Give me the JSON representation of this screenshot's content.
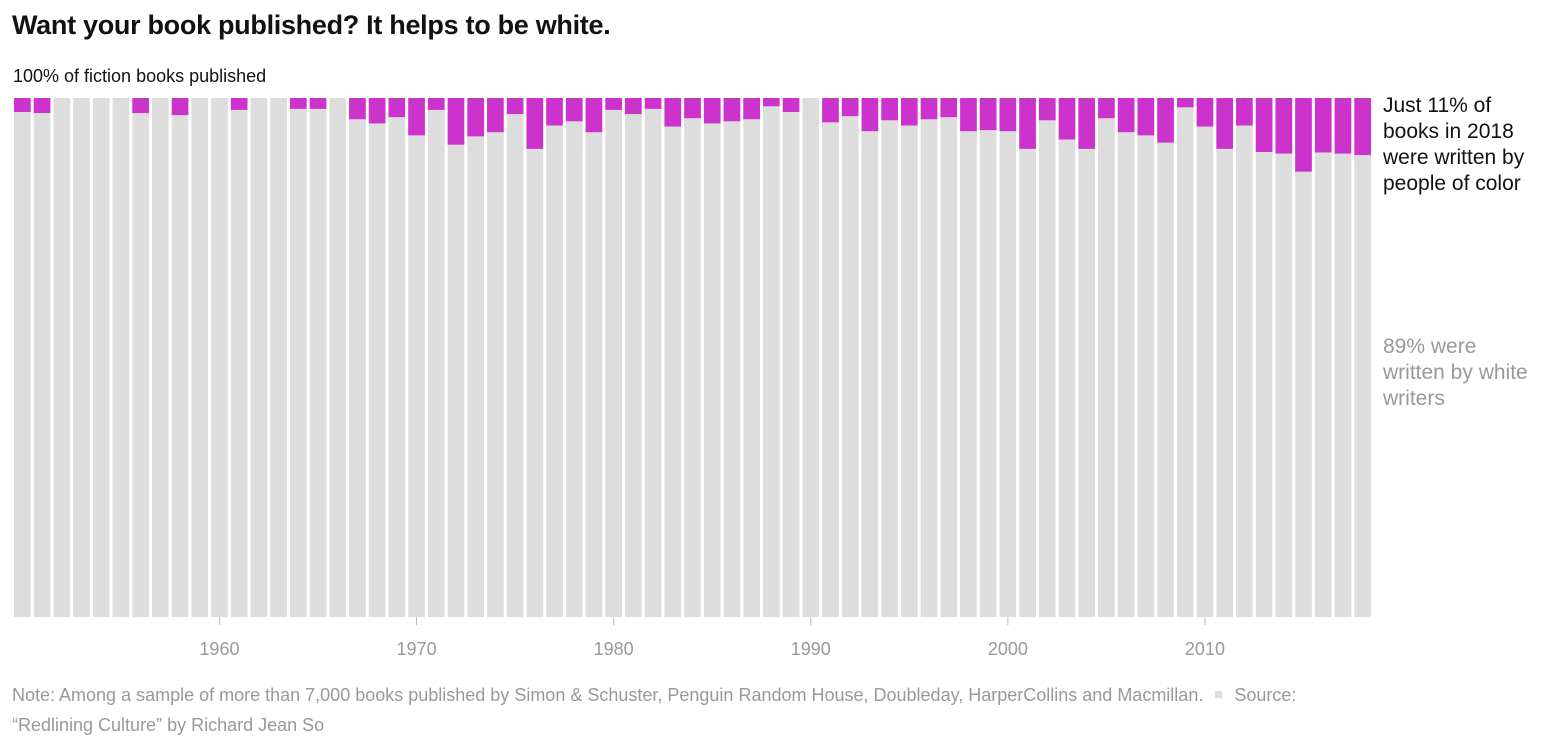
{
  "title": "Want your book published? It helps to be white.",
  "subtitle": "100% of fiction books published",
  "annotations": {
    "poc": "Just 11% of books in 2018 were written by people of color",
    "white": "89% were written by white writers"
  },
  "note": {
    "text": "Note: Among a sample of more than 7,000 books published by Simon & Schuster, Penguin Random House, Doubleday, HarperCollins and Macmillan.",
    "source_label": "Source:",
    "source": "“Redlining Culture” by Richard Jean So"
  },
  "colors": {
    "poc": "#cc33cc",
    "white": "#dddddd",
    "axis_text": "#999999"
  },
  "chart_data": {
    "type": "bar",
    "stacked": true,
    "x_start": 1950,
    "x_end": 2018,
    "ylim": [
      0,
      100
    ],
    "xticks": [
      1960,
      1970,
      1980,
      1990,
      2000,
      2010
    ],
    "series": [
      {
        "name": "people of color",
        "values": [
          2.7,
          2.9,
          0,
          0,
          0,
          0,
          2.9,
          0,
          3.3,
          0,
          0,
          2.3,
          0,
          0,
          2.1,
          2.1,
          0,
          4.1,
          4.9,
          3.7,
          7.2,
          2.3,
          9.0,
          7.4,
          6.6,
          3.1,
          9.8,
          5.3,
          4.5,
          6.6,
          2.3,
          3.1,
          2.1,
          5.5,
          3.9,
          4.9,
          4.5,
          4.1,
          1.6,
          2.7,
          0,
          4.7,
          3.5,
          6.4,
          4.3,
          5.3,
          4.1,
          3.7,
          6.4,
          6.2,
          6.4,
          9.8,
          4.3,
          8.0,
          9.8,
          3.9,
          6.6,
          7.2,
          8.6,
          1.8,
          5.5,
          9.8,
          5.3,
          10.4,
          10.7,
          14.2,
          10.5,
          10.7,
          11.0
        ]
      },
      {
        "name": "white writers",
        "values": [
          97.3,
          97.1,
          100,
          100,
          100,
          100,
          97.1,
          100,
          96.7,
          100,
          100,
          97.7,
          100,
          100,
          97.9,
          97.9,
          100,
          95.9,
          95.1,
          96.3,
          92.8,
          97.7,
          91.0,
          92.6,
          93.4,
          96.9,
          90.2,
          94.7,
          95.5,
          93.4,
          97.7,
          96.9,
          97.9,
          94.5,
          96.1,
          95.1,
          95.5,
          95.9,
          98.4,
          97.3,
          100,
          95.3,
          96.5,
          93.6,
          95.7,
          94.7,
          95.9,
          96.3,
          93.6,
          93.8,
          93.6,
          90.2,
          95.7,
          92.0,
          90.2,
          96.1,
          93.4,
          92.8,
          91.4,
          98.2,
          94.5,
          90.2,
          94.7,
          89.6,
          89.3,
          85.8,
          89.5,
          89.3,
          89.0
        ]
      }
    ]
  }
}
